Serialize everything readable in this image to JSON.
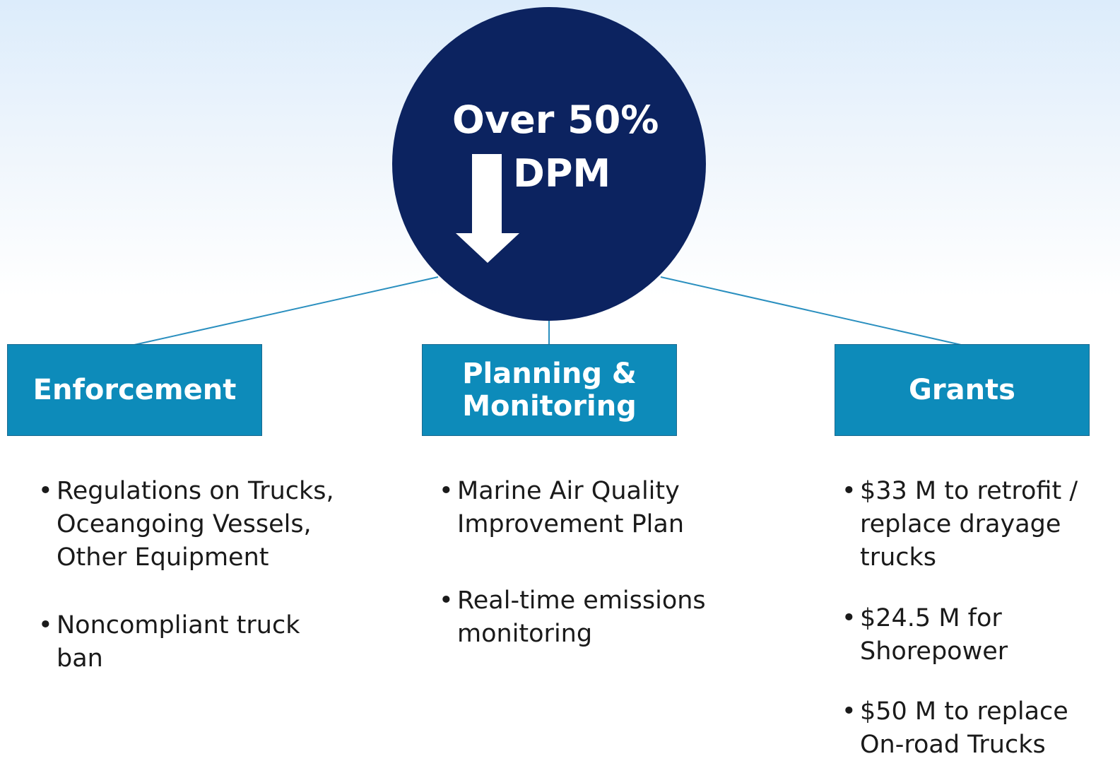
{
  "center": {
    "lines": [
      "Over 50%",
      "DPM"
    ]
  },
  "columns": [
    {
      "title": [
        "Enforcement"
      ],
      "bullets": [
        {
          "lines": [
            "Regulations on Trucks,",
            "Oceangoing Vessels,",
            "Other Equipment"
          ]
        },
        {
          "lines": [
            "Noncompliant truck",
            "ban"
          ]
        }
      ]
    },
    {
      "title": [
        "Planning &",
        "Monitoring"
      ],
      "bullets": [
        {
          "lines": [
            "Marine Air Quality",
            "Improvement Plan"
          ]
        },
        {
          "lines": [
            "Real-time emissions",
            "monitoring"
          ]
        }
      ]
    },
    {
      "title": [
        "Grants"
      ],
      "bullets": [
        {
          "lines": [
            "$33 M to retrofit /",
            "replace drayage",
            "trucks"
          ]
        },
        {
          "lines": [
            "$24.5 M for",
            "Shorepower"
          ]
        },
        {
          "lines": [
            "$50 M to replace",
            "On-road Trucks"
          ]
        }
      ]
    }
  ]
}
